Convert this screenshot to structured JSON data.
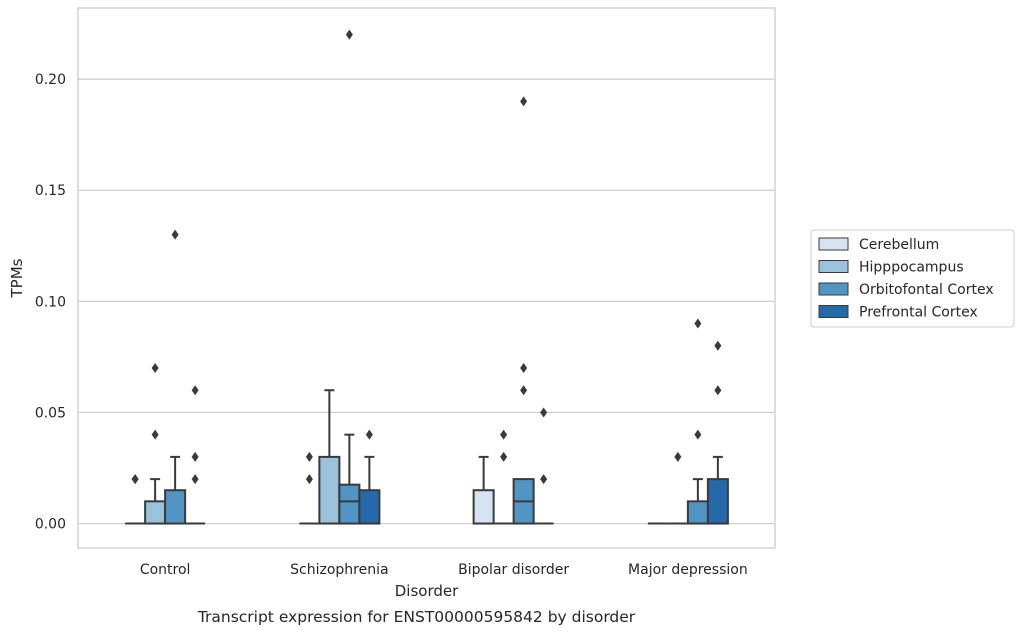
{
  "caption": "Transcript expression for ENST00000595842 by disorder",
  "chart_data": {
    "type": "box",
    "xlabel": "Disorder",
    "ylabel": "TPMs",
    "ylim": [
      -0.011,
      0.232
    ],
    "yticks": [
      0.0,
      0.05,
      0.1,
      0.15,
      0.2
    ],
    "ytick_labels": [
      "0.00",
      "0.05",
      "0.10",
      "0.15",
      "0.20"
    ],
    "grid": "horizontal",
    "legend_position": "right",
    "categories": [
      "Control",
      "Schizophrenia",
      "Bipolar disorder",
      "Major depression"
    ],
    "series": [
      {
        "name": "Cerebellum",
        "color": "#d6e4f1",
        "boxes": [
          {
            "q1": 0.0,
            "median": 0.0,
            "q3": 0.0,
            "whisker_low": 0.0,
            "whisker_high": 0.0,
            "outliers": [
              0.02,
              0.02
            ]
          },
          {
            "q1": 0.0,
            "median": 0.0,
            "q3": 0.0,
            "whisker_low": 0.0,
            "whisker_high": 0.0,
            "outliers": [
              0.02,
              0.03
            ]
          },
          {
            "q1": 0.0,
            "median": 0.0,
            "q3": 0.015,
            "whisker_low": 0.0,
            "whisker_high": 0.03,
            "outliers": []
          },
          {
            "q1": 0.0,
            "median": 0.0,
            "q3": 0.0,
            "whisker_low": 0.0,
            "whisker_high": 0.0,
            "outliers": []
          }
        ]
      },
      {
        "name": "Hipppocampus",
        "color": "#9ac2db",
        "boxes": [
          {
            "q1": 0.0,
            "median": 0.0,
            "q3": 0.01,
            "whisker_low": 0.0,
            "whisker_high": 0.02,
            "outliers": [
              0.04,
              0.07
            ]
          },
          {
            "q1": 0.0,
            "median": 0.0,
            "q3": 0.03,
            "whisker_low": 0.0,
            "whisker_high": 0.06,
            "outliers": []
          },
          {
            "q1": 0.0,
            "median": 0.0,
            "q3": 0.0,
            "whisker_low": 0.0,
            "whisker_high": 0.0,
            "outliers": [
              0.03,
              0.04
            ]
          },
          {
            "q1": 0.0,
            "median": 0.0,
            "q3": 0.0,
            "whisker_low": 0.0,
            "whisker_high": 0.0,
            "outliers": [
              0.03
            ]
          }
        ]
      },
      {
        "name": "Orbitofontal Cortex",
        "color": "#5195c4",
        "boxes": [
          {
            "q1": 0.0,
            "median": 0.0,
            "q3": 0.015,
            "whisker_low": 0.0,
            "whisker_high": 0.03,
            "outliers": [
              0.13
            ]
          },
          {
            "q1": 0.0,
            "median": 0.01,
            "q3": 0.0175,
            "whisker_low": 0.0,
            "whisker_high": 0.04,
            "outliers": [
              0.22
            ]
          },
          {
            "q1": 0.0,
            "median": 0.01,
            "q3": 0.02,
            "whisker_low": 0.0,
            "whisker_high": 0.02,
            "outliers": [
              0.06,
              0.07,
              0.19
            ]
          },
          {
            "q1": 0.0,
            "median": 0.0,
            "q3": 0.01,
            "whisker_low": 0.0,
            "whisker_high": 0.02,
            "outliers": [
              0.04,
              0.09
            ]
          }
        ]
      },
      {
        "name": "Prefrontal Cortex",
        "color": "#2669a8",
        "boxes": [
          {
            "q1": 0.0,
            "median": 0.0,
            "q3": 0.0,
            "whisker_low": 0.0,
            "whisker_high": 0.0,
            "outliers": [
              0.02,
              0.03,
              0.06
            ]
          },
          {
            "q1": 0.0,
            "median": 0.0,
            "q3": 0.015,
            "whisker_low": 0.0,
            "whisker_high": 0.03,
            "outliers": [
              0.04
            ]
          },
          {
            "q1": 0.0,
            "median": 0.0,
            "q3": 0.0,
            "whisker_low": 0.0,
            "whisker_high": 0.0,
            "outliers": [
              0.02,
              0.05
            ]
          },
          {
            "q1": 0.0,
            "median": 0.0,
            "q3": 0.02,
            "whisker_low": 0.0,
            "whisker_high": 0.03,
            "outliers": [
              0.06,
              0.08
            ]
          }
        ]
      }
    ]
  }
}
